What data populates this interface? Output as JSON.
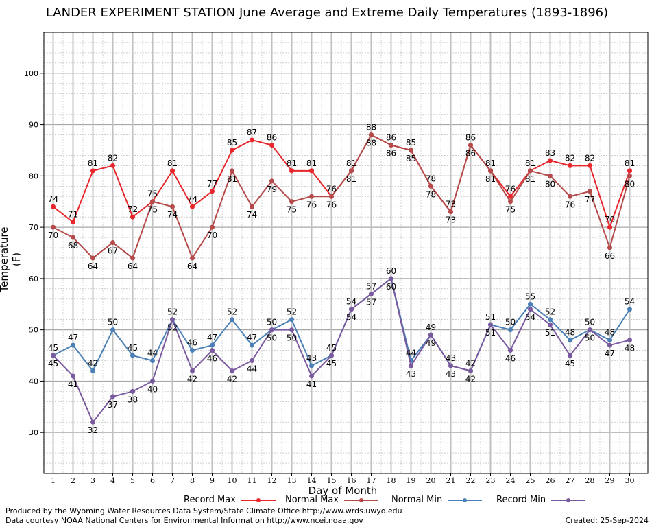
{
  "chart_data": {
    "type": "line",
    "title": "LANDER EXPERIMENT STATION June Average and Extreme Daily Temperatures (1893-1896)",
    "xlabel": "Day of Month",
    "ylabel": "Temperature (F)",
    "ylim": [
      22,
      108
    ],
    "yticks": [
      30,
      40,
      50,
      60,
      70,
      80,
      90,
      100
    ],
    "grid": true,
    "legend_position": "bottom",
    "x": [
      1,
      2,
      3,
      4,
      5,
      6,
      7,
      8,
      9,
      10,
      11,
      12,
      13,
      14,
      15,
      16,
      17,
      18,
      19,
      20,
      21,
      22,
      23,
      24,
      25,
      26,
      27,
      28,
      29,
      30
    ],
    "series": [
      {
        "name": "Record Max",
        "color": "#e8262b",
        "values": [
          74,
          71,
          81,
          82,
          72,
          75,
          81,
          74,
          77,
          85,
          87,
          86,
          81,
          81,
          76,
          81,
          88,
          86,
          85,
          78,
          73,
          86,
          81,
          76,
          81,
          83,
          82,
          82,
          70,
          81
        ]
      },
      {
        "name": "Normal Max",
        "color": "#b54a4a",
        "values": [
          70,
          68,
          64,
          67,
          64,
          75,
          74,
          64,
          70,
          81,
          74,
          79,
          75,
          76,
          76,
          81,
          88,
          86,
          85,
          78,
          73,
          86,
          81,
          75,
          81,
          80,
          76,
          77,
          66,
          80
        ]
      },
      {
        "name": "Normal Min",
        "color": "#4a80b5",
        "values": [
          45,
          47,
          42,
          50,
          45,
          44,
          52,
          46,
          47,
          52,
          47,
          50,
          52,
          43,
          45,
          54,
          57,
          60,
          44,
          49,
          43,
          42,
          51,
          50,
          55,
          52,
          48,
          50,
          48,
          54
        ]
      },
      {
        "name": "Record Min",
        "color": "#7a5a9e",
        "values": [
          45,
          41,
          32,
          37,
          38,
          40,
          52,
          42,
          46,
          42,
          44,
          50,
          50,
          41,
          45,
          54,
          57,
          60,
          43,
          49,
          43,
          42,
          51,
          46,
          54,
          51,
          45,
          50,
          47,
          48
        ]
      }
    ]
  },
  "footer": {
    "line1": "Produced by the Wyoming Water Resources Data System/State Climate Office http://www.wrds.uwyo.edu",
    "line2": "Data courtesy NOAA National Centers for Environmental Information http://www.ncei.noaa.gov",
    "created": "Created:  25-Sep-2024"
  }
}
